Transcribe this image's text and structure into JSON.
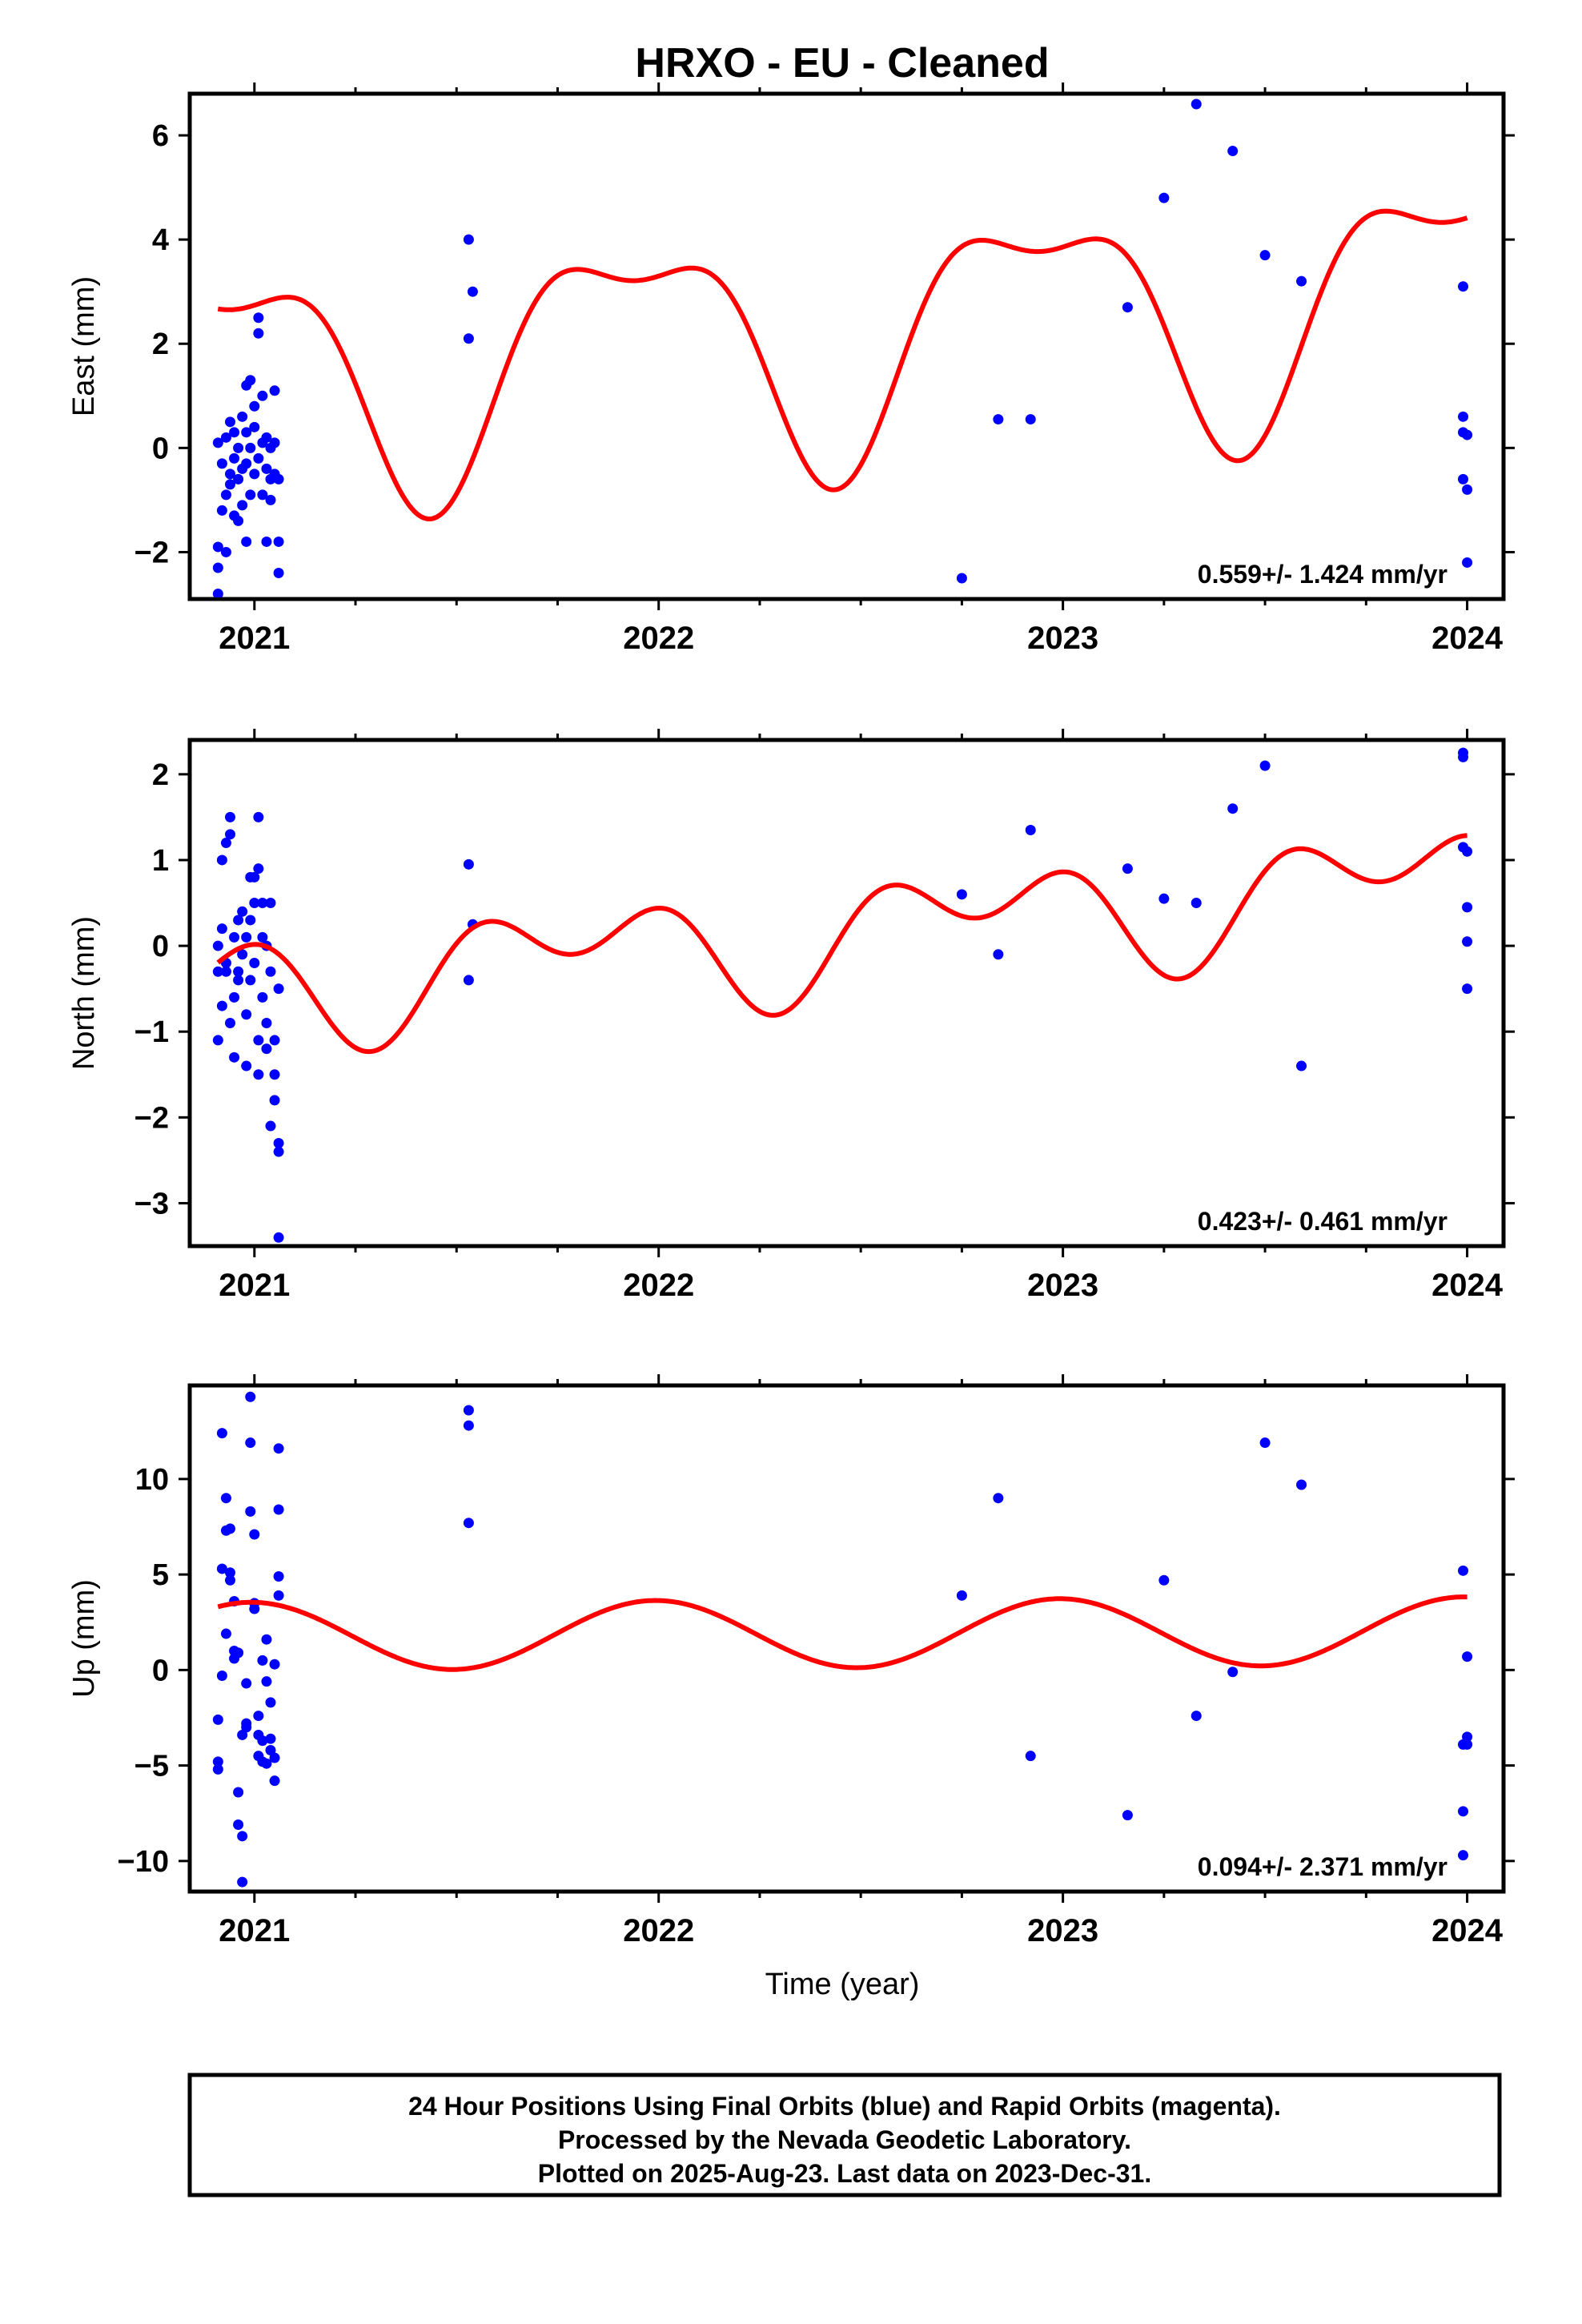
{
  "title": "HRXO  - EU - Cleaned",
  "xlabel": "Time (year)",
  "colors": {
    "dots": "#0000ff",
    "fit": "#ff0000",
    "frame": "#000000"
  },
  "footer": {
    "line1": "24 Hour Positions Using Final Orbits (blue) and Rapid Orbits (magenta).",
    "line2": "Processed by the Nevada Geodetic Laboratory.",
    "line3": "Plotted on 2025-Aug-23. Last data on 2023-Dec-31."
  },
  "chart_data": [
    {
      "type": "scatter",
      "name": "east",
      "ylabel": "East (mm)",
      "rate_label": "0.559+/- 1.424 mm/yr",
      "xlim": [
        2020.84,
        2024.09
      ],
      "ylim": [
        -2.9,
        6.8
      ],
      "x_ticks": [
        2021,
        2022,
        2023,
        2024
      ],
      "y_ticks": [
        -2,
        0,
        2,
        4,
        6
      ],
      "y_tick_labels": [
        "−2",
        "0",
        "2",
        "4",
        "6"
      ],
      "points": [
        [
          2020.91,
          -2.8
        ],
        [
          2020.91,
          -2.3
        ],
        [
          2020.91,
          -1.9
        ],
        [
          2020.91,
          0.1
        ],
        [
          2020.92,
          -1.2
        ],
        [
          2020.92,
          -0.3
        ],
        [
          2020.93,
          -2.0
        ],
        [
          2020.93,
          -0.9
        ],
        [
          2020.93,
          0.2
        ],
        [
          2020.94,
          -0.7
        ],
        [
          2020.94,
          -0.5
        ],
        [
          2020.94,
          0.5
        ],
        [
          2020.95,
          -1.3
        ],
        [
          2020.95,
          -0.2
        ],
        [
          2020.95,
          0.3
        ],
        [
          2020.96,
          -1.4
        ],
        [
          2020.96,
          -0.6
        ],
        [
          2020.96,
          0.0
        ],
        [
          2020.97,
          -1.1
        ],
        [
          2020.97,
          -0.4
        ],
        [
          2020.97,
          0.6
        ],
        [
          2020.98,
          -1.8
        ],
        [
          2020.98,
          -0.3
        ],
        [
          2020.98,
          0.3
        ],
        [
          2020.98,
          1.2
        ],
        [
          2020.99,
          -0.9
        ],
        [
          2020.99,
          0.0
        ],
        [
          2020.99,
          1.3
        ],
        [
          2021.0,
          -0.5
        ],
        [
          2021.0,
          0.4
        ],
        [
          2021.0,
          0.8
        ],
        [
          2021.01,
          2.5
        ],
        [
          2021.01,
          2.2
        ],
        [
          2021.01,
          -0.2
        ],
        [
          2021.02,
          0.1
        ],
        [
          2021.02,
          1.0
        ],
        [
          2021.02,
          -0.9
        ],
        [
          2021.03,
          -0.4
        ],
        [
          2021.03,
          0.2
        ],
        [
          2021.03,
          -1.8
        ],
        [
          2021.04,
          -0.6
        ],
        [
          2021.04,
          0.0
        ],
        [
          2021.04,
          -1.0
        ],
        [
          2021.05,
          -0.5
        ],
        [
          2021.05,
          0.1
        ],
        [
          2021.05,
          1.1
        ],
        [
          2021.06,
          -0.6
        ],
        [
          2021.06,
          -1.8
        ],
        [
          2021.06,
          -2.4
        ],
        [
          2021.53,
          4.0
        ],
        [
          2021.54,
          3.0
        ],
        [
          2021.53,
          2.1
        ],
        [
          2022.75,
          -2.5
        ],
        [
          2022.84,
          0.55
        ],
        [
          2022.92,
          0.55
        ],
        [
          2023.16,
          2.7
        ],
        [
          2023.25,
          4.8
        ],
        [
          2023.33,
          6.6
        ],
        [
          2023.42,
          5.7
        ],
        [
          2023.5,
          3.7
        ],
        [
          2023.59,
          3.2
        ],
        [
          2023.99,
          3.1
        ],
        [
          2023.99,
          0.6
        ],
        [
          2023.99,
          0.3
        ],
        [
          2023.99,
          -0.6
        ],
        [
          2024.0,
          0.25
        ],
        [
          2024.0,
          -0.8
        ],
        [
          2024.0,
          -2.2
        ]
      ],
      "fit": {
        "mean": 2.2,
        "rate": 0.559,
        "t0": 2022.45,
        "coefs": [
          -0.9,
          1.95,
          0.6,
          -0.6
        ]
      }
    },
    {
      "type": "scatter",
      "name": "north",
      "ylabel": "North (mm)",
      "rate_label": "0.423+/- 0.461 mm/yr",
      "xlim": [
        2020.84,
        2024.09
      ],
      "ylim": [
        -3.5,
        2.4
      ],
      "x_ticks": [
        2021,
        2022,
        2023,
        2024
      ],
      "y_ticks": [
        -3,
        -2,
        -1,
        0,
        1,
        2
      ],
      "y_tick_labels": [
        "−3",
        "−2",
        "−1",
        "0",
        "1",
        "2"
      ],
      "points": [
        [
          2020.91,
          -1.1
        ],
        [
          2020.91,
          -0.3
        ],
        [
          2020.91,
          0.0
        ],
        [
          2020.92,
          -0.7
        ],
        [
          2020.92,
          0.2
        ],
        [
          2020.92,
          1.0
        ],
        [
          2020.93,
          -0.3
        ],
        [
          2020.93,
          -0.2
        ],
        [
          2020.93,
          1.2
        ],
        [
          2020.94,
          1.3
        ],
        [
          2020.94,
          -0.9
        ],
        [
          2020.94,
          1.5
        ],
        [
          2020.95,
          -1.3
        ],
        [
          2020.95,
          -0.6
        ],
        [
          2020.95,
          0.1
        ],
        [
          2020.96,
          -0.3
        ],
        [
          2020.96,
          0.3
        ],
        [
          2020.96,
          -0.4
        ],
        [
          2020.97,
          -0.1
        ],
        [
          2020.97,
          0.4
        ],
        [
          2020.98,
          -0.8
        ],
        [
          2020.98,
          -1.4
        ],
        [
          2020.98,
          0.1
        ],
        [
          2020.99,
          0.8
        ],
        [
          2020.99,
          -0.4
        ],
        [
          2020.99,
          0.3
        ],
        [
          2021.0,
          -0.2
        ],
        [
          2021.0,
          0.5
        ],
        [
          2021.0,
          0.8
        ],
        [
          2021.01,
          -1.5
        ],
        [
          2021.01,
          -1.1
        ],
        [
          2021.01,
          0.9
        ],
        [
          2021.01,
          1.5
        ],
        [
          2021.02,
          0.5
        ],
        [
          2021.02,
          0.1
        ],
        [
          2021.02,
          -0.6
        ],
        [
          2021.03,
          -0.9
        ],
        [
          2021.03,
          -1.2
        ],
        [
          2021.03,
          0.0
        ],
        [
          2021.04,
          -2.1
        ],
        [
          2021.04,
          0.5
        ],
        [
          2021.04,
          -0.3
        ],
        [
          2021.05,
          -1.1
        ],
        [
          2021.05,
          -1.5
        ],
        [
          2021.05,
          -1.8
        ],
        [
          2021.06,
          -2.3
        ],
        [
          2021.06,
          -2.4
        ],
        [
          2021.06,
          -3.4
        ],
        [
          2021.06,
          -0.5
        ],
        [
          2021.53,
          0.95
        ],
        [
          2021.54,
          0.25
        ],
        [
          2021.53,
          -0.4
        ],
        [
          2022.75,
          0.6
        ],
        [
          2022.84,
          -0.1
        ],
        [
          2022.92,
          1.35
        ],
        [
          2023.16,
          0.9
        ],
        [
          2023.25,
          0.55
        ],
        [
          2023.33,
          0.5
        ],
        [
          2023.42,
          1.6
        ],
        [
          2023.5,
          2.1
        ],
        [
          2023.59,
          -1.4
        ],
        [
          2023.99,
          2.25
        ],
        [
          2023.99,
          2.2
        ],
        [
          2023.99,
          1.15
        ],
        [
          2024.0,
          1.1
        ],
        [
          2024.0,
          0.45
        ],
        [
          2024.0,
          0.05
        ],
        [
          2024.0,
          -0.5
        ]
      ],
      "fit": {
        "mean": 0.15,
        "rate": 0.423,
        "t0": 2022.45,
        "coefs": [
          -0.45,
          0.1,
          0.2,
          0.38
        ]
      }
    },
    {
      "type": "scatter",
      "name": "up",
      "ylabel": "Up (mm)",
      "rate_label": "0.094+/- 2.371 mm/yr",
      "xlim": [
        2020.84,
        2024.09
      ],
      "ylim": [
        -11.6,
        14.9
      ],
      "x_ticks": [
        2021,
        2022,
        2023,
        2024
      ],
      "y_ticks": [
        -10,
        -5,
        0,
        5,
        10
      ],
      "y_tick_labels": [
        "−10",
        "−5",
        "0",
        "5",
        "10"
      ],
      "points": [
        [
          2020.91,
          -2.6
        ],
        [
          2020.91,
          -4.8
        ],
        [
          2020.91,
          -5.2
        ],
        [
          2020.92,
          12.4
        ],
        [
          2020.92,
          5.3
        ],
        [
          2020.92,
          -0.3
        ],
        [
          2020.93,
          9.0
        ],
        [
          2020.93,
          7.3
        ],
        [
          2020.93,
          1.9
        ],
        [
          2020.94,
          7.4
        ],
        [
          2020.94,
          5.1
        ],
        [
          2020.94,
          4.7
        ],
        [
          2020.95,
          3.6
        ],
        [
          2020.95,
          1.0
        ],
        [
          2020.95,
          0.6
        ],
        [
          2020.96,
          0.9
        ],
        [
          2020.96,
          -6.4
        ],
        [
          2020.96,
          -8.1
        ],
        [
          2020.97,
          -11.1
        ],
        [
          2020.97,
          -8.7
        ],
        [
          2020.97,
          -3.4
        ],
        [
          2020.98,
          -3.0
        ],
        [
          2020.98,
          -0.7
        ],
        [
          2020.98,
          -2.8
        ],
        [
          2020.99,
          11.9
        ],
        [
          2020.99,
          14.3
        ],
        [
          2020.99,
          8.3
        ],
        [
          2021.0,
          7.1
        ],
        [
          2021.0,
          3.5
        ],
        [
          2021.0,
          3.2
        ],
        [
          2021.01,
          -2.4
        ],
        [
          2021.01,
          -3.4
        ],
        [
          2021.01,
          -4.5
        ],
        [
          2021.02,
          0.5
        ],
        [
          2021.02,
          -4.8
        ],
        [
          2021.02,
          -3.7
        ],
        [
          2021.03,
          1.6
        ],
        [
          2021.03,
          -0.6
        ],
        [
          2021.03,
          -4.9
        ],
        [
          2021.04,
          -1.7
        ],
        [
          2021.04,
          -3.6
        ],
        [
          2021.04,
          -4.2
        ],
        [
          2021.05,
          0.3
        ],
        [
          2021.05,
          -4.6
        ],
        [
          2021.05,
          -5.8
        ],
        [
          2021.06,
          11.6
        ],
        [
          2021.06,
          8.4
        ],
        [
          2021.06,
          4.9
        ],
        [
          2021.06,
          3.9
        ],
        [
          2021.53,
          13.6
        ],
        [
          2021.53,
          12.8
        ],
        [
          2021.53,
          7.7
        ],
        [
          2022.75,
          3.9
        ],
        [
          2022.84,
          9.0
        ],
        [
          2022.92,
          -4.5
        ],
        [
          2023.16,
          -7.6
        ],
        [
          2023.25,
          4.7
        ],
        [
          2023.33,
          -2.4
        ],
        [
          2023.42,
          -0.1
        ],
        [
          2023.5,
          11.9
        ],
        [
          2023.59,
          9.7
        ],
        [
          2023.99,
          5.2
        ],
        [
          2023.99,
          -3.9
        ],
        [
          2023.99,
          -7.4
        ],
        [
          2023.99,
          -9.7
        ],
        [
          2024.0,
          0.7
        ],
        [
          2024.0,
          -3.5
        ],
        [
          2024.0,
          -3.9
        ]
      ],
      "fit": {
        "mean": 1.9,
        "rate": 0.094,
        "t0": 2022.45,
        "coefs": [
          -0.1,
          1.78,
          0.0,
          0.0
        ]
      }
    }
  ]
}
